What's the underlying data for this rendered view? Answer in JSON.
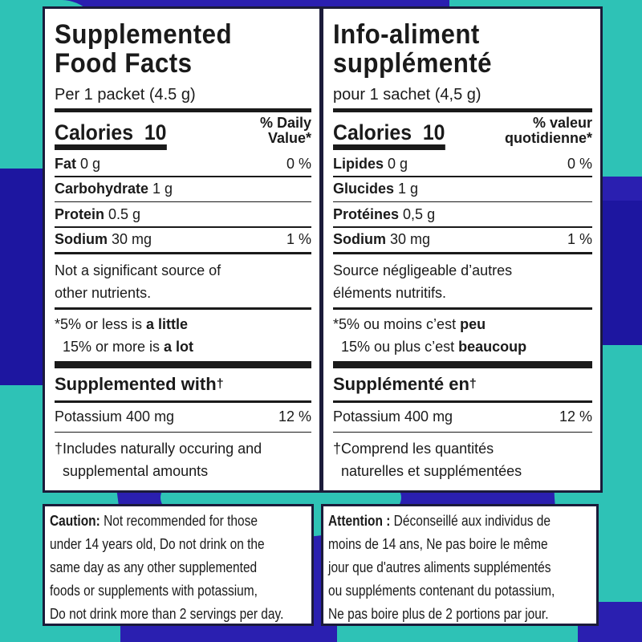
{
  "colors": {
    "teal": "#2ec2b6",
    "blue": "#2a1fb0",
    "dark_blue": "#1a1480"
  },
  "left": {
    "title_1": "Supplemented",
    "title_2": "Food Facts",
    "serving": "Per 1 packet (4.5 g)",
    "calories_label": "Calories",
    "calories_value": "10",
    "dv_1": "% Daily",
    "dv_2": "Value*",
    "nutrients": [
      {
        "name": "Fat",
        "amount": "0 g",
        "dv": "0 %"
      },
      {
        "name": "Carbohydrate",
        "amount": "1 g",
        "dv": ""
      },
      {
        "name": "Protein",
        "amount": "0.5 g",
        "dv": ""
      },
      {
        "name": "Sodium",
        "amount": "30 mg",
        "dv": "1 %"
      }
    ],
    "note_1": "Not a significant source of",
    "note_2": "other nutrients.",
    "fn_1a": "*5% or less is ",
    "fn_1b": "a little",
    "fn_2a": "15% or more is ",
    "fn_2b": "a lot",
    "supp_label": "Supplemented with",
    "dagger": "†",
    "pot_name": "Potassium 400 mg",
    "pot_dv": "12 %",
    "tfn_1": "†Includes naturally occuring and",
    "tfn_2": "supplemental amounts",
    "caution_bold": "Caution:",
    "caution_lines": [
      " Not recommended for those",
      "under 14 years old, Do not drink on the",
      "same day as any other supplemented",
      "foods or supplements with potassium,",
      "Do not drink more than 2 servings per day."
    ]
  },
  "right": {
    "title_1": "Info-aliment",
    "title_2": "supplémenté",
    "serving": "pour 1 sachet (4,5 g)",
    "calories_label": "Calories",
    "calories_value": "10",
    "dv_1": "% valeur",
    "dv_2": "quotidienne*",
    "nutrients": [
      {
        "name": "Lipides",
        "amount": "0 g",
        "dv": "0 %"
      },
      {
        "name": "Glucides",
        "amount": "1 g",
        "dv": ""
      },
      {
        "name": "Protéines",
        "amount": "0,5 g",
        "dv": ""
      },
      {
        "name": "Sodium",
        "amount": "30 mg",
        "dv": "1 %"
      }
    ],
    "note_1": "Source négligeable d’autres",
    "note_2": "éléments nutritifs.",
    "fn_1a": "*5% ou moins c’est ",
    "fn_1b": "peu",
    "fn_2a": "15% ou plus c’est ",
    "fn_2b": "beaucoup",
    "supp_label": "Supplémenté en",
    "dagger": "†",
    "pot_name": "Potassium 400 mg",
    "pot_dv": "12 %",
    "tfn_1": "†Comprend les quantités",
    "tfn_2": "naturelles et supplémentées",
    "caution_bold": "Attention :",
    "caution_lines": [
      " Déconseillé aux individus de",
      "moins de 14 ans, Ne pas boire le même",
      "jour que d'autres aliments supplémentés",
      "ou suppléments contenant du potassium,",
      "Ne pas boire plus de 2 portions par jour."
    ]
  }
}
